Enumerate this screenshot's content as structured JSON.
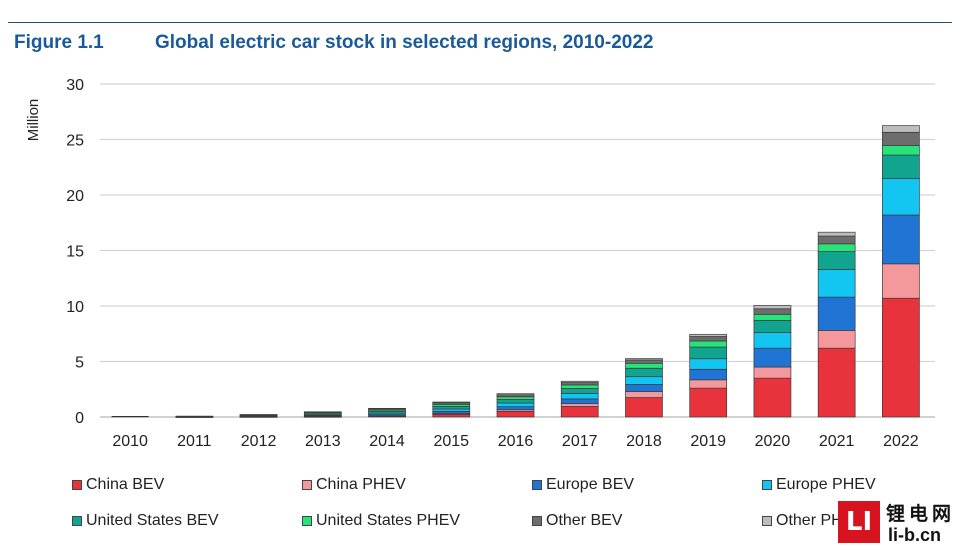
{
  "figure": {
    "label": "Figure 1.1",
    "title": "Global electric car stock in selected regions, 2010-2022"
  },
  "chart_data": {
    "type": "bar",
    "stacked": true,
    "title": "Global electric car stock in selected regions, 2010-2022",
    "xlabel": "",
    "ylabel": "Million",
    "ylim": [
      0,
      30
    ],
    "yticks": [
      0,
      5,
      10,
      15,
      20,
      25,
      30
    ],
    "grid": true,
    "legend_position": "bottom",
    "categories": [
      "2010",
      "2011",
      "2012",
      "2013",
      "2014",
      "2015",
      "2016",
      "2017",
      "2018",
      "2019",
      "2020",
      "2021",
      "2022"
    ],
    "series": [
      {
        "name": "China BEV",
        "color": "#e8323c",
        "values": [
          0.0,
          0.01,
          0.02,
          0.03,
          0.08,
          0.25,
          0.5,
          0.95,
          1.75,
          2.6,
          3.5,
          6.2,
          10.7
        ]
      },
      {
        "name": "China PHEV",
        "color": "#f4989c",
        "values": [
          0.0,
          0.0,
          0.0,
          0.01,
          0.03,
          0.07,
          0.15,
          0.25,
          0.55,
          0.75,
          1.0,
          1.6,
          3.1
        ]
      },
      {
        "name": "Europe BEV",
        "color": "#1f74d4",
        "values": [
          0.0,
          0.01,
          0.03,
          0.06,
          0.1,
          0.19,
          0.28,
          0.43,
          0.63,
          0.95,
          1.7,
          3.0,
          4.4
        ]
      },
      {
        "name": "Europe PHEV",
        "color": "#13c6f2",
        "values": [
          0.0,
          0.0,
          0.02,
          0.06,
          0.13,
          0.21,
          0.33,
          0.5,
          0.7,
          0.95,
          1.4,
          2.5,
          3.3
        ]
      },
      {
        "name": "United States BEV",
        "color": "#11a590",
        "values": [
          0.0,
          0.02,
          0.05,
          0.1,
          0.16,
          0.24,
          0.32,
          0.44,
          0.76,
          1.05,
          1.1,
          1.6,
          2.1
        ]
      },
      {
        "name": "United States PHEV",
        "color": "#28e27a",
        "values": [
          0.0,
          0.01,
          0.04,
          0.1,
          0.12,
          0.18,
          0.24,
          0.32,
          0.45,
          0.55,
          0.55,
          0.7,
          0.85
        ]
      },
      {
        "name": "Other BEV",
        "color": "#6d6d6d",
        "values": [
          0.0,
          0.03,
          0.05,
          0.08,
          0.12,
          0.14,
          0.18,
          0.21,
          0.3,
          0.4,
          0.5,
          0.7,
          1.2
        ]
      },
      {
        "name": "Other PHEV",
        "color": "#bdbdbd",
        "values": [
          0.0,
          0.0,
          0.01,
          0.03,
          0.04,
          0.07,
          0.1,
          0.12,
          0.12,
          0.2,
          0.3,
          0.35,
          0.6
        ]
      }
    ]
  },
  "watermark": {
    "logo_text": "LI",
    "chinese": "锂电网",
    "url": "li-b.cn"
  }
}
